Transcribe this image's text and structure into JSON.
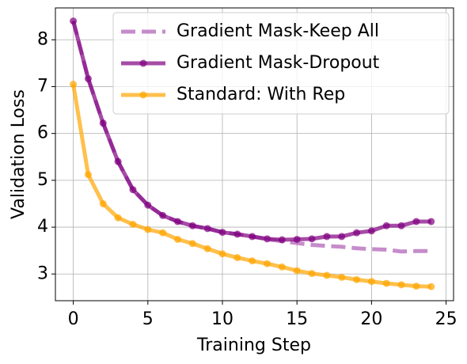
{
  "chart_data": {
    "type": "line",
    "x_label": "Training Step",
    "y_label": "Validation Loss",
    "x": [
      0,
      1,
      2,
      3,
      4,
      5,
      6,
      7,
      8,
      9,
      10,
      11,
      12,
      13,
      14,
      15,
      16,
      17,
      18,
      19,
      20,
      21,
      22,
      23,
      24
    ],
    "xlim": [
      -1.2,
      25.5
    ],
    "xticks": [
      0,
      5,
      10,
      15,
      20,
      25
    ],
    "ylim": [
      2.43,
      8.68
    ],
    "yticks": [
      3,
      4,
      5,
      6,
      7,
      8
    ],
    "grid": true,
    "legend": "upper right",
    "series": [
      {
        "name": "Gradient Mask-Keep All",
        "color": "#a040a8",
        "dashed": true,
        "marker": false,
        "values": [
          8.4,
          7.17,
          6.22,
          5.4,
          4.8,
          4.47,
          4.25,
          4.12,
          4.03,
          3.97,
          3.89,
          3.85,
          3.8,
          3.74,
          3.7,
          3.66,
          3.62,
          3.6,
          3.58,
          3.55,
          3.53,
          3.52,
          3.48,
          3.49,
          3.49
        ]
      },
      {
        "name": "Gradient Mask-Dropout",
        "color": "#800080",
        "dashed": false,
        "marker": true,
        "values": [
          8.4,
          7.17,
          6.22,
          5.4,
          4.8,
          4.47,
          4.25,
          4.12,
          4.03,
          3.97,
          3.89,
          3.85,
          3.8,
          3.75,
          3.73,
          3.74,
          3.75,
          3.8,
          3.8,
          3.88,
          3.92,
          4.03,
          4.03,
          4.12,
          4.12
        ]
      },
      {
        "name": "Standard: With Rep",
        "color": "#ffa500",
        "dashed": false,
        "marker": true,
        "values": [
          7.05,
          5.12,
          4.5,
          4.2,
          4.06,
          3.95,
          3.88,
          3.74,
          3.65,
          3.54,
          3.43,
          3.35,
          3.28,
          3.22,
          3.15,
          3.07,
          3.01,
          2.97,
          2.93,
          2.88,
          2.84,
          2.8,
          2.77,
          2.74,
          2.73
        ]
      }
    ]
  }
}
